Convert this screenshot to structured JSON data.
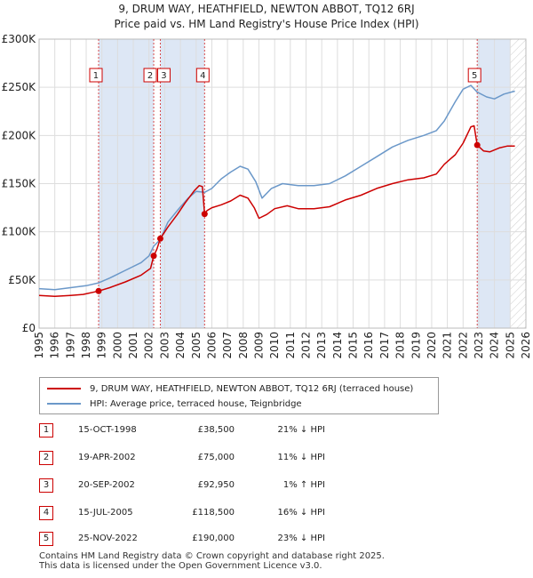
{
  "chart_data": {
    "type": "line",
    "title_line1": "9, DRUM WAY, HEATHFIELD, NEWTON ABBOT, TQ12 6RJ",
    "title_line2": "Price paid vs. HM Land Registry's House Price Index (HPI)",
    "xlim": [
      1995,
      2026
    ],
    "ylim": [
      0,
      300000
    ],
    "y_ticks": [
      {
        "value": 0,
        "label": "£0"
      },
      {
        "value": 50000,
        "label": "£50K"
      },
      {
        "value": 100000,
        "label": "£100K"
      },
      {
        "value": 150000,
        "label": "£150K"
      },
      {
        "value": 200000,
        "label": "£200K"
      },
      {
        "value": 250000,
        "label": "£250K"
      },
      {
        "value": 300000,
        "label": "£300K"
      }
    ],
    "x_ticks": [
      "1995",
      "1996",
      "1997",
      "1998",
      "1999",
      "2000",
      "2001",
      "2002",
      "2003",
      "2004",
      "2005",
      "2006",
      "2007",
      "2008",
      "2009",
      "2010",
      "2011",
      "2012",
      "2013",
      "2014",
      "2015",
      "2016",
      "2017",
      "2018",
      "2019",
      "2020",
      "2021",
      "2022",
      "2023",
      "2024",
      "2025",
      "2026"
    ],
    "colors": {
      "property": "#cc0000",
      "hpi": "#6b98c9",
      "shade": "#dde7f5",
      "grid": "#dddddd"
    },
    "series": [
      {
        "name": "9, DRUM WAY, HEATHFIELD, NEWTON ABBOT, TQ12 6RJ (terraced house)",
        "color": "#cc0000",
        "points": [
          [
            1995.0,
            34000
          ],
          [
            1996.0,
            33000
          ],
          [
            1997.0,
            34000
          ],
          [
            1997.8,
            35000
          ],
          [
            1998.79,
            38500
          ],
          [
            1999.5,
            42000
          ],
          [
            2000.5,
            48000
          ],
          [
            2001.5,
            55000
          ],
          [
            2002.1,
            62000
          ],
          [
            2002.3,
            75000
          ],
          [
            2002.5,
            82000
          ],
          [
            2002.72,
            92950
          ],
          [
            2003.2,
            105000
          ],
          [
            2003.8,
            118000
          ],
          [
            2004.3,
            130000
          ],
          [
            2004.9,
            143000
          ],
          [
            2005.2,
            148000
          ],
          [
            2005.4,
            147000
          ],
          [
            2005.54,
            118500
          ],
          [
            2005.7,
            122000
          ],
          [
            2006.0,
            125000
          ],
          [
            2006.6,
            128000
          ],
          [
            2007.2,
            132000
          ],
          [
            2007.8,
            138000
          ],
          [
            2008.3,
            135000
          ],
          [
            2008.7,
            125000
          ],
          [
            2009.0,
            114000
          ],
          [
            2009.5,
            118000
          ],
          [
            2010.0,
            124000
          ],
          [
            2010.8,
            127000
          ],
          [
            2011.5,
            124000
          ],
          [
            2012.5,
            124000
          ],
          [
            2013.5,
            126000
          ],
          [
            2014.5,
            133000
          ],
          [
            2015.5,
            138000
          ],
          [
            2016.5,
            145000
          ],
          [
            2017.5,
            150000
          ],
          [
            2018.5,
            154000
          ],
          [
            2019.5,
            156000
          ],
          [
            2020.3,
            160000
          ],
          [
            2020.8,
            170000
          ],
          [
            2021.5,
            180000
          ],
          [
            2022.0,
            192000
          ],
          [
            2022.5,
            209000
          ],
          [
            2022.7,
            210000
          ],
          [
            2022.9,
            190000
          ],
          [
            2023.3,
            184000
          ],
          [
            2023.7,
            183000
          ],
          [
            2024.3,
            187000
          ],
          [
            2024.8,
            189000
          ],
          [
            2025.3,
            189000
          ]
        ]
      },
      {
        "name": "HPI: Average price, terraced house, Teignbridge",
        "color": "#6b98c9",
        "points": [
          [
            1995.0,
            41000
          ],
          [
            1996.0,
            40000
          ],
          [
            1997.0,
            42000
          ],
          [
            1998.0,
            44000
          ],
          [
            1998.79,
            47000
          ],
          [
            1999.5,
            52000
          ],
          [
            2000.5,
            60000
          ],
          [
            2001.5,
            68000
          ],
          [
            2002.0,
            75000
          ],
          [
            2002.3,
            85000
          ],
          [
            2002.72,
            92000
          ],
          [
            2003.2,
            110000
          ],
          [
            2003.8,
            122000
          ],
          [
            2004.5,
            135000
          ],
          [
            2005.0,
            142000
          ],
          [
            2005.54,
            141000
          ],
          [
            2006.0,
            145000
          ],
          [
            2006.6,
            155000
          ],
          [
            2007.2,
            162000
          ],
          [
            2007.8,
            168000
          ],
          [
            2008.3,
            165000
          ],
          [
            2008.8,
            152000
          ],
          [
            2009.2,
            135000
          ],
          [
            2009.8,
            145000
          ],
          [
            2010.5,
            150000
          ],
          [
            2011.5,
            148000
          ],
          [
            2012.5,
            148000
          ],
          [
            2013.5,
            150000
          ],
          [
            2014.5,
            158000
          ],
          [
            2015.5,
            168000
          ],
          [
            2016.5,
            178000
          ],
          [
            2017.5,
            188000
          ],
          [
            2018.5,
            195000
          ],
          [
            2019.5,
            200000
          ],
          [
            2020.3,
            205000
          ],
          [
            2020.8,
            215000
          ],
          [
            2021.5,
            235000
          ],
          [
            2022.0,
            248000
          ],
          [
            2022.5,
            252000
          ],
          [
            2022.9,
            245000
          ],
          [
            2023.5,
            240000
          ],
          [
            2024.0,
            238000
          ],
          [
            2024.6,
            243000
          ],
          [
            2025.3,
            246000
          ]
        ]
      }
    ],
    "sales": [
      {
        "num": "1",
        "date": "15-OCT-1998",
        "price": "£38,500",
        "hpi": "21% ↓ HPI",
        "x": 1998.79,
        "y": 38500
      },
      {
        "num": "2",
        "date": "19-APR-2002",
        "price": "£75,000",
        "hpi": "11% ↓ HPI",
        "x": 2002.3,
        "y": 75000
      },
      {
        "num": "3",
        "date": "20-SEP-2002",
        "price": "£92,950",
        "hpi": "1% ↑ HPI",
        "x": 2002.72,
        "y": 92950
      },
      {
        "num": "4",
        "date": "15-JUL-2005",
        "price": "£118,500",
        "hpi": "16% ↓ HPI",
        "x": 2005.54,
        "y": 118500
      },
      {
        "num": "5",
        "date": "25-NOV-2022",
        "price": "£190,000",
        "hpi": "23% ↓ HPI",
        "x": 2022.9,
        "y": 190000
      }
    ],
    "shaded_ranges": [
      [
        1998.79,
        2002.3
      ],
      [
        2002.72,
        2005.54
      ],
      [
        2022.9,
        2026.0
      ]
    ],
    "hatched_range": [
      2025.0,
      2026.0
    ]
  },
  "legend": {
    "property_label": "9, DRUM WAY, HEATHFIELD, NEWTON ABBOT, TQ12 6RJ (terraced house)",
    "hpi_label": "HPI: Average price, terraced house, Teignbridge"
  },
  "footer": {
    "line1": "Contains HM Land Registry data © Crown copyright and database right 2025.",
    "line2": "This data is licensed under the Open Government Licence v3.0."
  }
}
